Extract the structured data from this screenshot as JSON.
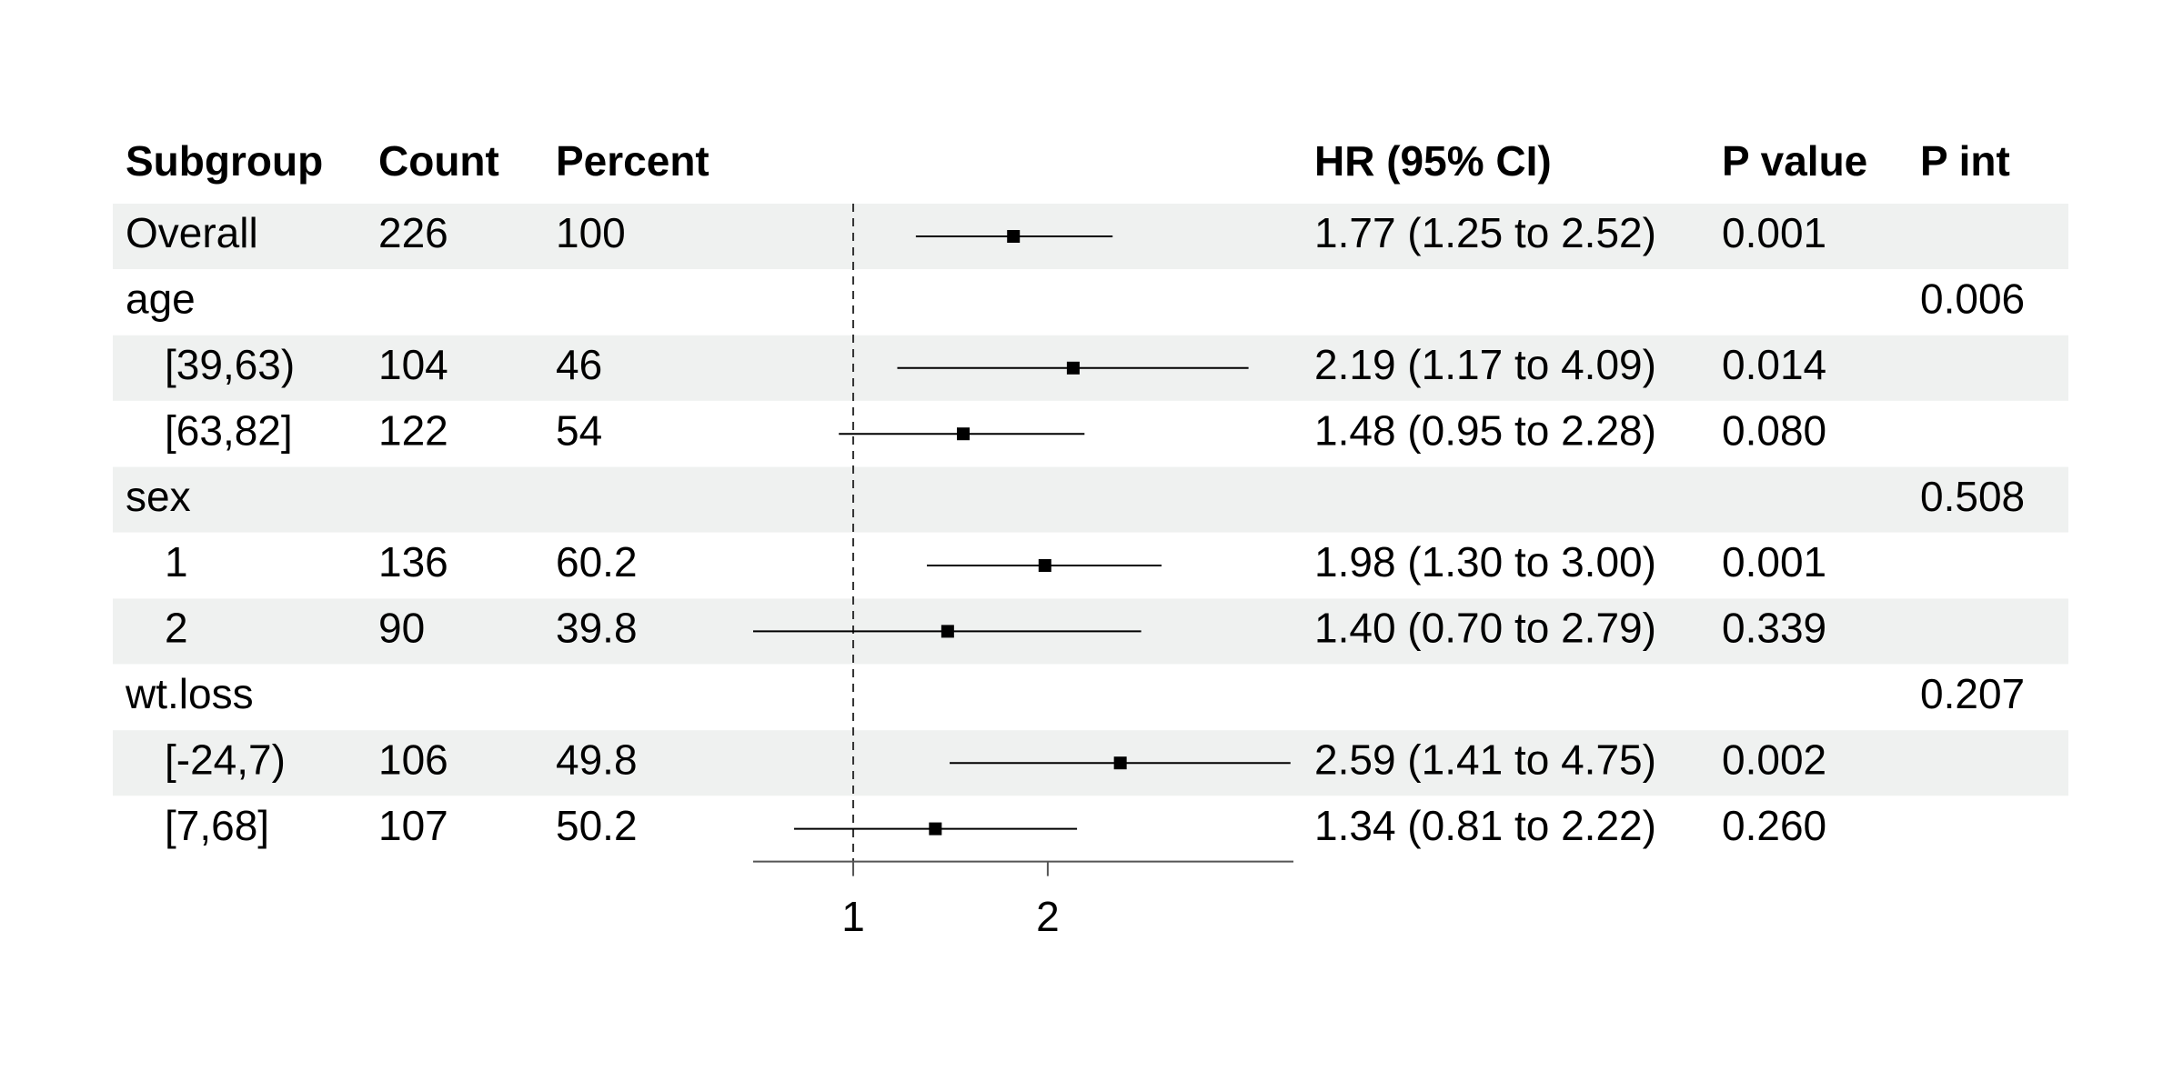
{
  "chart_data": {
    "type": "forest",
    "columns": {
      "subgroup": "Subgroup",
      "count": "Count",
      "percent": "Percent",
      "hr": "HR (95% CI)",
      "p": "P value",
      "p_int": "P int"
    },
    "overall": {
      "label": "Overall",
      "count": 226,
      "percent": 100,
      "est": 1.77,
      "lo": 1.25,
      "hi": 2.52,
      "hr_label": "1.77 (1.25 to 2.52)",
      "p": "0.001"
    },
    "groups": [
      {
        "name": "age",
        "p_int": "0.006",
        "rows": [
          {
            "label": "[39,63)",
            "count": 104,
            "percent": 46,
            "est": 2.19,
            "lo": 1.17,
            "hi": 4.09,
            "hr_label": "2.19 (1.17 to 4.09)",
            "p": "0.014"
          },
          {
            "label": "[63,82]",
            "count": 122,
            "percent": 54,
            "est": 1.48,
            "lo": 0.95,
            "hi": 2.28,
            "hr_label": "1.48 (0.95 to 2.28)",
            "p": "0.080"
          }
        ]
      },
      {
        "name": "sex",
        "p_int": "0.508",
        "rows": [
          {
            "label": "1",
            "count": 136,
            "percent": 60.2,
            "est": 1.98,
            "lo": 1.3,
            "hi": 3.0,
            "hr_label": "1.98 (1.30 to 3.00)",
            "p": "0.001"
          },
          {
            "label": "2",
            "count": 90,
            "percent": 39.8,
            "est": 1.4,
            "lo": 0.7,
            "hi": 2.79,
            "hr_label": "1.40 (0.70 to 2.79)",
            "p": "0.339"
          }
        ]
      },
      {
        "name": "wt.loss",
        "p_int": "0.207",
        "rows": [
          {
            "label": "[-24,7)",
            "count": 106,
            "percent": 49.8,
            "est": 2.59,
            "lo": 1.41,
            "hi": 4.75,
            "hr_label": "2.59 (1.41 to 4.75)",
            "p": "0.002"
          },
          {
            "label": "[7,68]",
            "count": 107,
            "percent": 50.2,
            "est": 1.34,
            "lo": 0.81,
            "hi": 2.22,
            "hr_label": "1.34 (0.81 to 2.22)",
            "p": "0.260"
          }
        ]
      }
    ],
    "xlim": [
      0.7,
      4.8
    ],
    "xticks": [
      1,
      2
    ],
    "log_x": true,
    "reference_line": 1,
    "color": "#000000",
    "stripe_color": "#eff1f0"
  }
}
